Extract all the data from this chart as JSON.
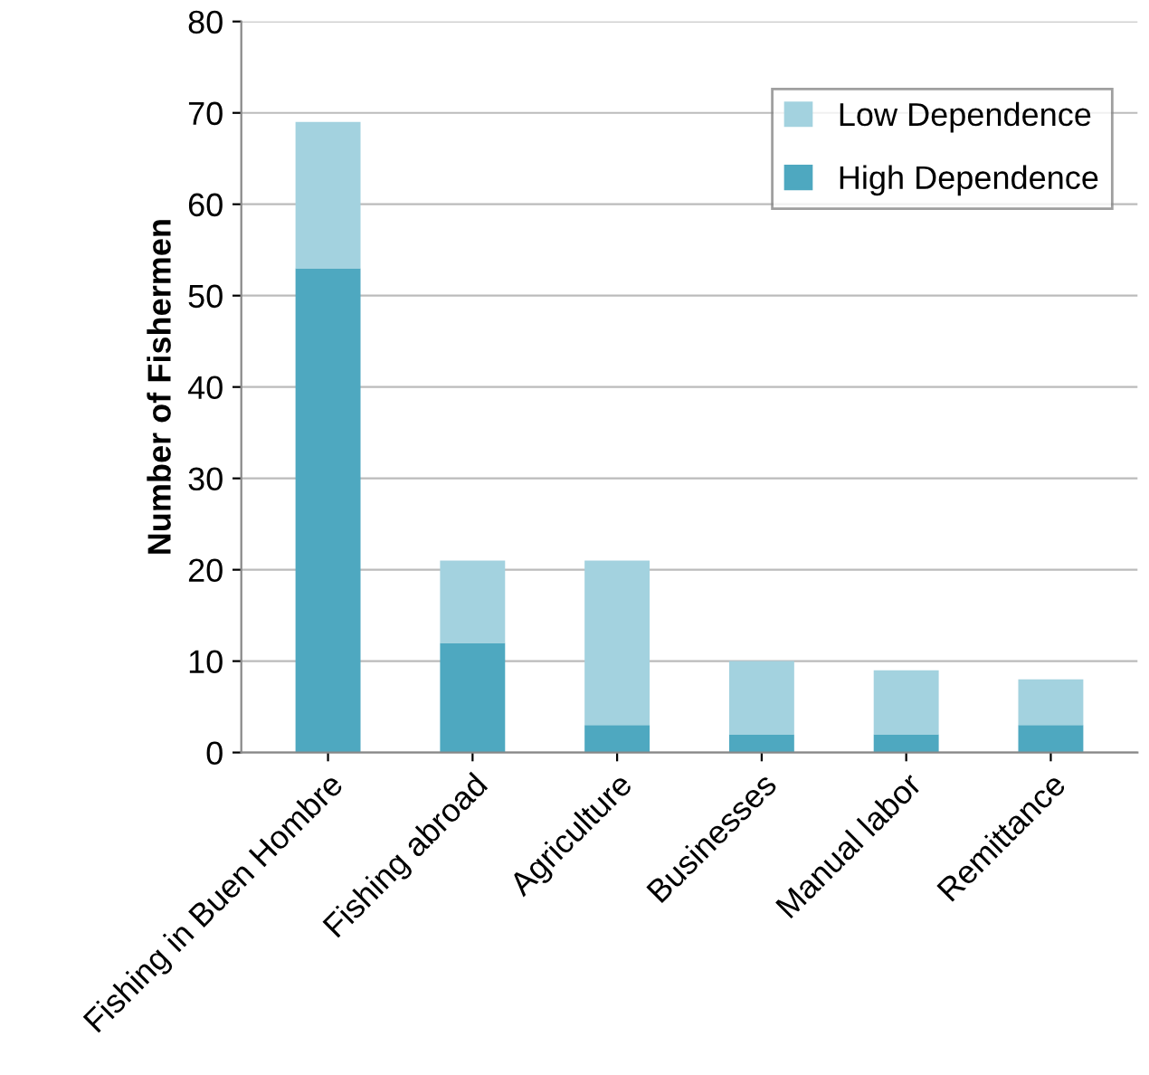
{
  "chart_data": {
    "type": "bar",
    "stacked": true,
    "ylabel": "Number of Fishermen",
    "categories": [
      "Fishing in Buen Hombre",
      "Fishing abroad",
      "Agriculture",
      "Businesses",
      "Manual labor",
      "Remittance"
    ],
    "series": [
      {
        "name": "High Dependence",
        "color": "#4ea8c0",
        "values": [
          53,
          12,
          3,
          2,
          2,
          3
        ]
      },
      {
        "name": "Low Dependence",
        "color": "#a3d2df",
        "values": [
          16,
          9,
          18,
          8,
          7,
          5
        ]
      }
    ],
    "ylim": [
      0,
      80
    ],
    "yticks": [
      0,
      10,
      20,
      30,
      40,
      50,
      60,
      70,
      80
    ],
    "grid": "y",
    "legend": "top right"
  }
}
